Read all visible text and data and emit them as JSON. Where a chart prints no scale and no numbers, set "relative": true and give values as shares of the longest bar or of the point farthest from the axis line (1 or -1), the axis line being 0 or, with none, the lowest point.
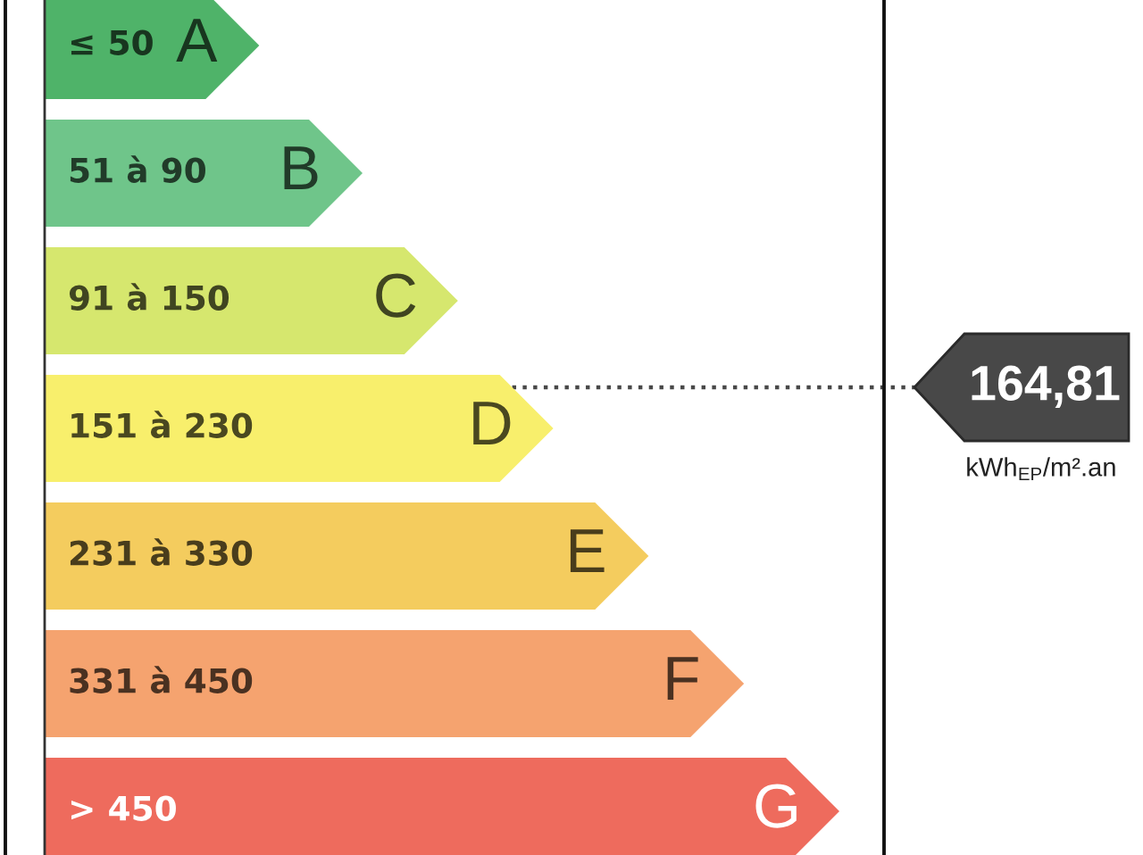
{
  "chart_data": {
    "type": "bar",
    "orientation": "horizontal",
    "relative": true,
    "categories": [
      "A",
      "B",
      "C",
      "D",
      "E",
      "F",
      "G"
    ],
    "values": [
      0.27,
      0.4,
      0.52,
      0.64,
      0.76,
      0.88,
      1
    ],
    "colors": [
      "#4fb369",
      "#6fc58a",
      "#d6e76e",
      "#f8ef6c",
      "#f4cc5e",
      "#f5a36f",
      "#ee6b5d"
    ],
    "annotations": [
      "≤ 50",
      "51 à 90",
      "91 à 150",
      "151 à 230",
      "231 à 330",
      "331 à 450",
      "> 450",
      "kWh$_{EP}$/m².an"
    ],
    "ref_lines": [
      {
        "axis": "y",
        "value": "D",
        "label": "164,81",
        "color": "#484848",
        "line_style": "dotted"
      }
    ]
  }
}
